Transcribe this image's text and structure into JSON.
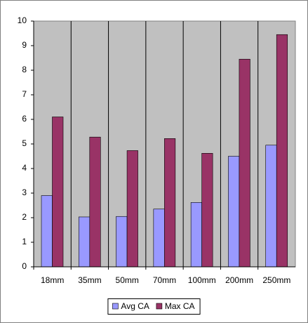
{
  "chart_data": {
    "type": "bar",
    "categories": [
      "18mm",
      "35mm",
      "50mm",
      "70mm",
      "100mm",
      "200mm",
      "250mm"
    ],
    "series": [
      {
        "name": "Avg CA",
        "color": "#9999ff",
        "values": [
          2.9,
          2.03,
          2.05,
          2.35,
          2.62,
          4.5,
          4.95
        ]
      },
      {
        "name": "Max CA",
        "color": "#993366",
        "values": [
          6.1,
          5.28,
          4.73,
          5.22,
          4.62,
          8.45,
          9.45
        ]
      }
    ],
    "ylim": [
      0,
      10
    ],
    "yticks": [
      0,
      1,
      2,
      3,
      4,
      5,
      6,
      7,
      8,
      9,
      10
    ],
    "grid": true,
    "legend": "bottom"
  }
}
